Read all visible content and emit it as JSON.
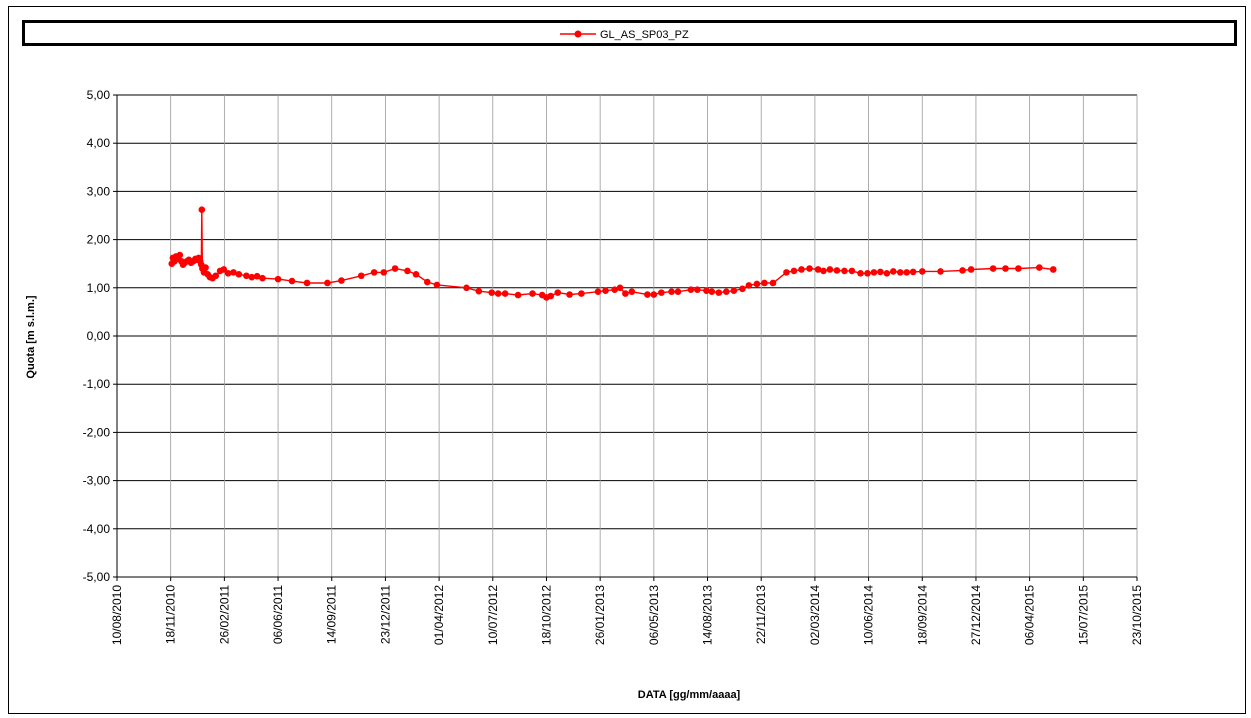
{
  "chart_data": {
    "type": "line",
    "xlabel": "DATA [gg/mm/aaaa]",
    "ylabel": "Quota [m s.l.m.]",
    "ylim": [
      -5,
      5
    ],
    "xlim": [
      "2010-08-10",
      "2015-10-23"
    ],
    "y_ticks": [
      "5,00",
      "4,00",
      "3,00",
      "2,00",
      "1,00",
      "0,00",
      "-1,00",
      "-2,00",
      "-3,00",
      "-4,00",
      "-5,00"
    ],
    "x_ticks": [
      "10/08/2010",
      "18/11/2010",
      "26/02/2011",
      "06/06/2011",
      "14/09/2011",
      "23/12/2011",
      "01/04/2012",
      "10/07/2012",
      "18/10/2012",
      "26/01/2013",
      "06/05/2013",
      "14/08/2013",
      "22/11/2013",
      "02/03/2014",
      "10/06/2014",
      "18/09/2014",
      "27/12/2014",
      "06/04/2015",
      "15/07/2015",
      "23/10/2015"
    ],
    "grid": true,
    "legend_position": "top",
    "series": [
      {
        "name": "GL_AS_SP03_PZ",
        "color": "#ff0000",
        "points": [
          [
            "2010-11-20",
            1.5
          ],
          [
            "2010-11-22",
            1.62
          ],
          [
            "2010-11-25",
            1.55
          ],
          [
            "2010-11-28",
            1.65
          ],
          [
            "2010-12-02",
            1.6
          ],
          [
            "2010-12-05",
            1.68
          ],
          [
            "2010-12-08",
            1.55
          ],
          [
            "2010-12-11",
            1.48
          ],
          [
            "2010-12-14",
            1.52
          ],
          [
            "2010-12-18",
            1.55
          ],
          [
            "2010-12-22",
            1.58
          ],
          [
            "2010-12-26",
            1.52
          ],
          [
            "2010-12-30",
            1.55
          ],
          [
            "2011-01-03",
            1.6
          ],
          [
            "2011-01-06",
            1.58
          ],
          [
            "2011-01-09",
            1.62
          ],
          [
            "2011-01-12",
            1.55
          ],
          [
            "2011-01-14",
            1.48
          ],
          [
            "2011-01-15",
            2.62
          ],
          [
            "2011-01-16",
            1.4
          ],
          [
            "2011-01-19",
            1.32
          ],
          [
            "2011-01-22",
            1.42
          ],
          [
            "2011-01-26",
            1.28
          ],
          [
            "2011-01-30",
            1.22
          ],
          [
            "2011-02-04",
            1.2
          ],
          [
            "2011-02-10",
            1.25
          ],
          [
            "2011-02-18",
            1.35
          ],
          [
            "2011-02-25",
            1.38
          ],
          [
            "2011-03-05",
            1.3
          ],
          [
            "2011-03-15",
            1.32
          ],
          [
            "2011-03-25",
            1.28
          ],
          [
            "2011-04-08",
            1.25
          ],
          [
            "2011-04-18",
            1.22
          ],
          [
            "2011-04-28",
            1.24
          ],
          [
            "2011-05-08",
            1.2
          ],
          [
            "2011-06-06",
            1.18
          ],
          [
            "2011-07-02",
            1.14
          ],
          [
            "2011-07-30",
            1.1
          ],
          [
            "2011-09-06",
            1.1
          ],
          [
            "2011-10-02",
            1.15
          ],
          [
            "2011-11-08",
            1.25
          ],
          [
            "2011-12-02",
            1.32
          ],
          [
            "2011-12-20",
            1.32
          ],
          [
            "2012-01-10",
            1.4
          ],
          [
            "2012-02-02",
            1.35
          ],
          [
            "2012-02-18",
            1.28
          ],
          [
            "2012-03-10",
            1.12
          ],
          [
            "2012-03-28",
            1.06
          ],
          [
            "2012-05-22",
            1.0
          ],
          [
            "2012-06-14",
            0.93
          ],
          [
            "2012-07-08",
            0.9
          ],
          [
            "2012-07-20",
            0.88
          ],
          [
            "2012-08-02",
            0.88
          ],
          [
            "2012-08-26",
            0.85
          ],
          [
            "2012-09-22",
            0.88
          ],
          [
            "2012-10-10",
            0.85
          ],
          [
            "2012-10-18",
            0.8
          ],
          [
            "2012-10-26",
            0.83
          ],
          [
            "2012-11-08",
            0.9
          ],
          [
            "2012-11-30",
            0.86
          ],
          [
            "2012-12-22",
            0.88
          ],
          [
            "2013-01-22",
            0.92
          ],
          [
            "2013-02-05",
            0.94
          ],
          [
            "2013-02-22",
            0.96
          ],
          [
            "2013-03-04",
            1.0
          ],
          [
            "2013-03-14",
            0.88
          ],
          [
            "2013-03-26",
            0.92
          ],
          [
            "2013-04-24",
            0.86
          ],
          [
            "2013-05-06",
            0.86
          ],
          [
            "2013-05-20",
            0.9
          ],
          [
            "2013-06-08",
            0.92
          ],
          [
            "2013-06-20",
            0.92
          ],
          [
            "2013-07-14",
            0.96
          ],
          [
            "2013-07-26",
            0.96
          ],
          [
            "2013-08-12",
            0.94
          ],
          [
            "2013-08-22",
            0.92
          ],
          [
            "2013-09-04",
            0.9
          ],
          [
            "2013-09-18",
            0.92
          ],
          [
            "2013-10-02",
            0.94
          ],
          [
            "2013-10-18",
            0.98
          ],
          [
            "2013-10-30",
            1.05
          ],
          [
            "2013-11-14",
            1.08
          ],
          [
            "2013-11-28",
            1.1
          ],
          [
            "2013-12-14",
            1.1
          ],
          [
            "2014-01-08",
            1.32
          ],
          [
            "2014-01-22",
            1.35
          ],
          [
            "2014-02-05",
            1.38
          ],
          [
            "2014-02-20",
            1.4
          ],
          [
            "2014-03-08",
            1.38
          ],
          [
            "2014-03-18",
            1.35
          ],
          [
            "2014-03-30",
            1.38
          ],
          [
            "2014-04-12",
            1.36
          ],
          [
            "2014-04-26",
            1.35
          ],
          [
            "2014-05-10",
            1.35
          ],
          [
            "2014-05-26",
            1.3
          ],
          [
            "2014-06-08",
            1.3
          ],
          [
            "2014-06-20",
            1.32
          ],
          [
            "2014-07-02",
            1.33
          ],
          [
            "2014-07-14",
            1.3
          ],
          [
            "2014-07-26",
            1.34
          ],
          [
            "2014-08-08",
            1.32
          ],
          [
            "2014-08-20",
            1.32
          ],
          [
            "2014-09-01",
            1.33
          ],
          [
            "2014-09-18",
            1.34
          ],
          [
            "2014-10-22",
            1.34
          ],
          [
            "2014-12-02",
            1.36
          ],
          [
            "2014-12-18",
            1.38
          ],
          [
            "2015-01-28",
            1.4
          ],
          [
            "2015-02-20",
            1.4
          ],
          [
            "2015-03-16",
            1.4
          ],
          [
            "2015-04-24",
            1.42
          ],
          [
            "2015-05-20",
            1.38
          ]
        ]
      }
    ]
  }
}
